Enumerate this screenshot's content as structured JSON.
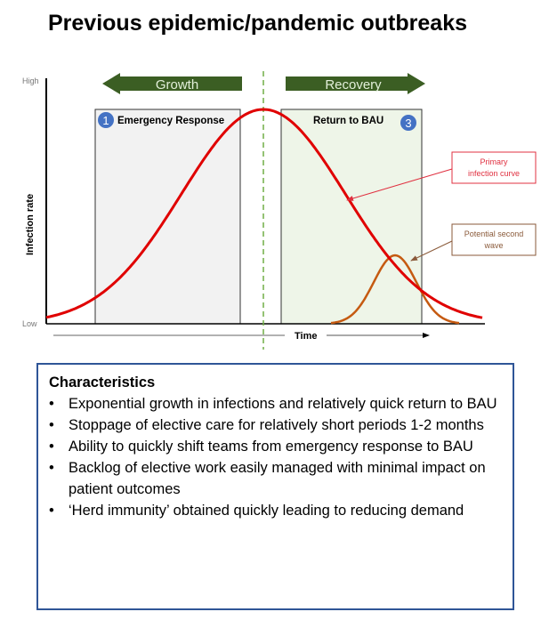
{
  "title": "Previous epidemic/pandemic outbreaks",
  "diagram": {
    "y_axis_label": "Infection rate",
    "y_high": "High",
    "y_low": "Low",
    "x_axis_label": "Time",
    "growth_arrow": "Growth",
    "recovery_arrow": "Recovery",
    "phase1": {
      "number": "1",
      "label": "Emergency Response"
    },
    "phase3": {
      "number": "3",
      "label": "Return to BAU"
    },
    "callout_primary": [
      "Primary",
      "infection curve"
    ],
    "callout_second": [
      "Potential second",
      "wave"
    ],
    "colors": {
      "primary_curve": "#E00000",
      "second_wave": "#C55A11",
      "arrow": "#3B5E23",
      "badge": "#4472C4",
      "box1_fill": "#F2F2F2",
      "box3_fill": "#EEF5E8"
    }
  },
  "characteristics": {
    "heading": "Characteristics",
    "items": [
      "Exponential growth in infections and relatively quick return to BAU",
      "Stoppage of elective care for relatively short periods 1-2 months",
      "Ability to quickly shift teams from emergency response to BAU",
      "Backlog of elective work easily managed with minimal impact on patient outcomes",
      "‘Herd immunity’ obtained quickly leading to reducing demand"
    ]
  }
}
